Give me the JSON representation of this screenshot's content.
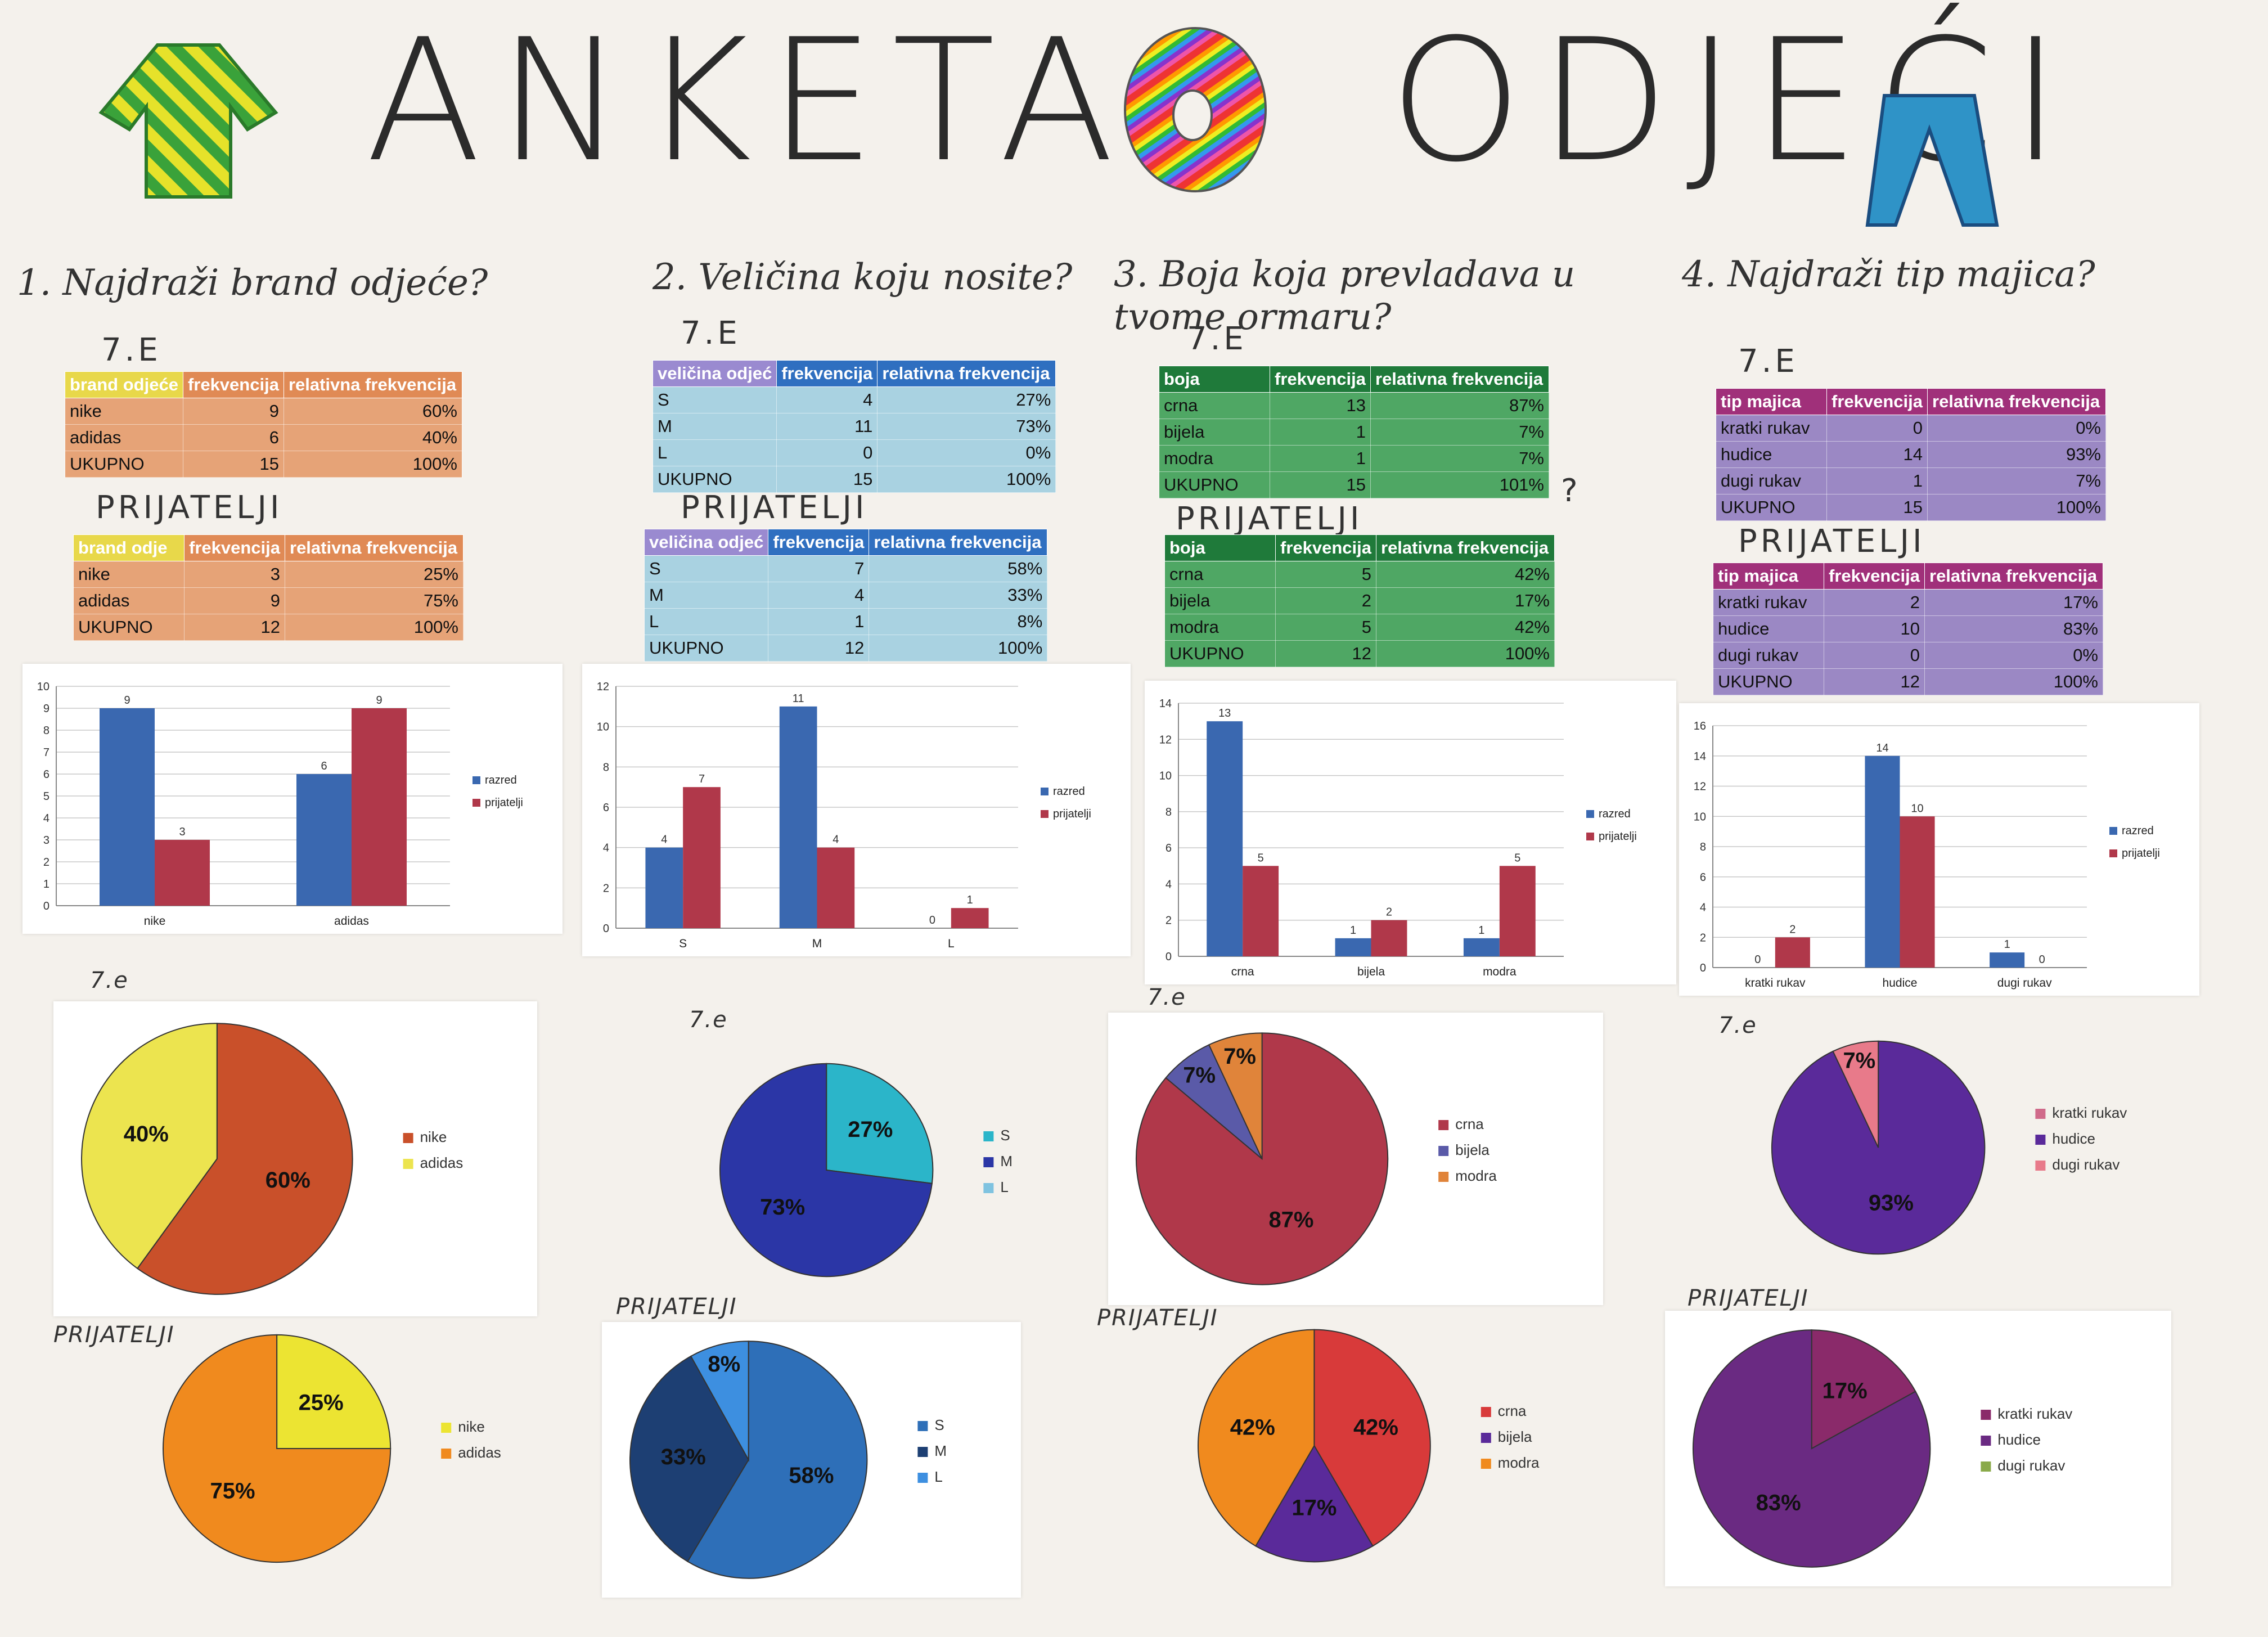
{
  "poster": {
    "title_left": "ANKETA",
    "title_right": "ODJEĆI",
    "group_label": "7.E",
    "group_label_small": "7.e",
    "friends_label": "PRIJATELJI",
    "question_mark_note": "?",
    "colors": {
      "razred": "#3a68b0",
      "prijatelji": "#b0384a"
    },
    "icons": [
      "shirt-icon",
      "donut-icon",
      "trousers-icon"
    ]
  },
  "questions": [
    {
      "text": "1. Najdraži brand odjeće?"
    },
    {
      "text": "2. Veličina koju nosite?"
    },
    {
      "text": "3. Boja koja prevladava u tvome ormaru?"
    },
    {
      "text": "4. Najdraži tip majica?"
    }
  ],
  "tables": [
    {
      "header": [
        "brand odjeće",
        "frekvencija",
        "relativna frekvencija"
      ],
      "color": "#e6a377",
      "head_color": "#e08a55",
      "rows": [
        [
          "nike",
          "9",
          "60%"
        ],
        [
          "adidas",
          "6",
          "40%"
        ],
        [
          "UKUPNO",
          "15",
          "100%"
        ]
      ]
    },
    {
      "header": [
        "brand odje",
        "frekvencija",
        "relativna frekvencija"
      ],
      "color": "#e6a377",
      "head_color": "#e08a55",
      "rows": [
        [
          "nike",
          "3",
          "25%"
        ],
        [
          "adidas",
          "9",
          "75%"
        ],
        [
          "UKUPNO",
          "12",
          "100%"
        ]
      ]
    },
    {
      "header": [
        "veličina odjeć",
        "frekvencija",
        "relativna frekvencija"
      ],
      "color": "#a9d2e1",
      "head_color": "#2f6fc0",
      "rows": [
        [
          "S",
          "4",
          "27%"
        ],
        [
          "M",
          "11",
          "73%"
        ],
        [
          "L",
          "0",
          "0%"
        ],
        [
          "UKUPNO",
          "15",
          "100%"
        ]
      ]
    },
    {
      "header": [
        "veličina odjeć",
        "frekvencija",
        "relativna frekvencija"
      ],
      "color": "#a9d2e1",
      "head_color": "#2f6fc0",
      "rows": [
        [
          "S",
          "7",
          "58%"
        ],
        [
          "M",
          "4",
          "33%"
        ],
        [
          "L",
          "1",
          "8%"
        ],
        [
          "UKUPNO",
          "12",
          "100%"
        ]
      ]
    },
    {
      "header": [
        "boja",
        "frekvencija",
        "relativna frekvencija"
      ],
      "color": "#4fa764",
      "head_color": "#1f7a3a",
      "rows": [
        [
          "crna",
          "13",
          "87%"
        ],
        [
          "bijela",
          "1",
          "7%"
        ],
        [
          "modra",
          "1",
          "7%"
        ],
        [
          "UKUPNO",
          "15",
          "101%"
        ]
      ]
    },
    {
      "header": [
        "boja",
        "frekvencija",
        "relativna frekvencija"
      ],
      "color": "#4fa764",
      "head_color": "#1f7a3a",
      "rows": [
        [
          "crna",
          "5",
          "42%"
        ],
        [
          "bijela",
          "2",
          "17%"
        ],
        [
          "modra",
          "5",
          "42%"
        ],
        [
          "UKUPNO",
          "12",
          "100%"
        ]
      ]
    },
    {
      "header": [
        "tip majica",
        "frekvencija",
        "relativna frekvencija"
      ],
      "color": "#9b88c4",
      "head_color": "#a0307a",
      "rows": [
        [
          "kratki rukav",
          "0",
          "0%"
        ],
        [
          "hudice",
          "14",
          "93%"
        ],
        [
          "dugi rukav",
          "1",
          "7%"
        ],
        [
          "UKUPNO",
          "15",
          "100%"
        ]
      ]
    },
    {
      "header": [
        "tip majica",
        "frekvencija",
        "relativna frekvencija"
      ],
      "color": "#9b88c4",
      "head_color": "#a0307a",
      "rows": [
        [
          "kratki rukav",
          "2",
          "17%"
        ],
        [
          "hudice",
          "10",
          "83%"
        ],
        [
          "dugi rukav",
          "0",
          "0%"
        ],
        [
          "UKUPNO",
          "12",
          "100%"
        ]
      ]
    }
  ],
  "chart_data": [
    {
      "type": "bar",
      "categories": [
        "nike",
        "adidas"
      ],
      "ylim": [
        0,
        10
      ],
      "ticks": [
        0,
        1,
        2,
        3,
        4,
        5,
        6,
        7,
        8,
        9,
        10
      ],
      "series": [
        {
          "name": "razred",
          "values": [
            9,
            6
          ]
        },
        {
          "name": "prijatelji",
          "values": [
            3,
            9
          ]
        }
      ],
      "legend": "right"
    },
    {
      "type": "bar",
      "categories": [
        "S",
        "M",
        "L"
      ],
      "ylim": [
        0,
        12
      ],
      "ticks": [
        0,
        2,
        4,
        6,
        8,
        10,
        12
      ],
      "series": [
        {
          "name": "razred",
          "values": [
            4,
            11,
            0
          ]
        },
        {
          "name": "prijatelji",
          "values": [
            7,
            4,
            1
          ]
        }
      ],
      "legend": "right"
    },
    {
      "type": "bar",
      "categories": [
        "crna",
        "bijela",
        "modra"
      ],
      "ylim": [
        0,
        14
      ],
      "ticks": [
        0,
        2,
        4,
        6,
        8,
        10,
        12,
        14
      ],
      "series": [
        {
          "name": "razred",
          "values": [
            13,
            1,
            1
          ]
        },
        {
          "name": "prijatelji",
          "values": [
            5,
            2,
            5
          ]
        }
      ],
      "legend": "right"
    },
    {
      "type": "bar",
      "categories": [
        "kratki rukav",
        "hudice",
        "dugi rukav"
      ],
      "ylim": [
        0,
        16
      ],
      "ticks": [
        0,
        2,
        4,
        6,
        8,
        10,
        12,
        14,
        16
      ],
      "series": [
        {
          "name": "razred",
          "values": [
            0,
            14,
            1
          ]
        },
        {
          "name": "prijatelji",
          "values": [
            2,
            10,
            0
          ]
        }
      ],
      "legend": "right"
    },
    {
      "type": "pie",
      "labels": [
        "nike",
        "adidas"
      ],
      "values": [
        60,
        40
      ],
      "data_labels": [
        "60%",
        "40%"
      ],
      "colors": [
        "#c9502a",
        "#ece44f"
      ],
      "group": "7.e"
    },
    {
      "type": "pie",
      "labels": [
        "S",
        "M",
        "L"
      ],
      "values": [
        27,
        73,
        0
      ],
      "data_labels": [
        "27%",
        "73%",
        ""
      ],
      "colors": [
        "#2bb5c9",
        "#2b36a6",
        "#7fc3e0"
      ],
      "group": "7.e"
    },
    {
      "type": "pie",
      "labels": [
        "crna",
        "bijela",
        "modra"
      ],
      "values": [
        87,
        7,
        7
      ],
      "data_labels": [
        "87%",
        "7%",
        "7%"
      ],
      "colors": [
        "#b0384a",
        "#5a5aa8",
        "#e0843a"
      ],
      "group": "7.e"
    },
    {
      "type": "pie",
      "labels": [
        "kratki rukav",
        "hudice",
        "dugi rukav"
      ],
      "values": [
        0,
        93,
        7
      ],
      "data_labels": [
        "",
        "93%",
        "7%"
      ],
      "colors": [
        "#d06a8a",
        "#5a2a9a",
        "#e87a8a"
      ],
      "group": "7.e"
    },
    {
      "type": "pie",
      "labels": [
        "nike",
        "adidas"
      ],
      "values": [
        25,
        75
      ],
      "data_labels": [
        "25%",
        "75%"
      ],
      "colors": [
        "#ece432",
        "#f08a1e"
      ],
      "group": "PRIJATELJI"
    },
    {
      "type": "pie",
      "labels": [
        "S",
        "M",
        "L"
      ],
      "values": [
        58,
        33,
        8
      ],
      "data_labels": [
        "58%",
        "33%",
        "8%"
      ],
      "colors": [
        "#2e6fb8",
        "#1d3f73",
        "#3d8fe0"
      ],
      "group": "PRIJATELJI"
    },
    {
      "type": "pie",
      "labels": [
        "crna",
        "bijela",
        "modra"
      ],
      "values": [
        42,
        17,
        42
      ],
      "data_labels": [
        "42%",
        "17%",
        "42%"
      ],
      "colors": [
        "#d83a3a",
        "#5a2a9a",
        "#f08a1e"
      ],
      "group": "PRIJATELJI"
    },
    {
      "type": "pie",
      "labels": [
        "kratki rukav",
        "hudice",
        "dugi rukav"
      ],
      "values": [
        17,
        83,
        0
      ],
      "data_labels": [
        "17%",
        "83%",
        ""
      ],
      "colors": [
        "#8a2a6a",
        "#6a2a82",
        "#8aaa4a"
      ],
      "group": "PRIJATELJI"
    }
  ]
}
